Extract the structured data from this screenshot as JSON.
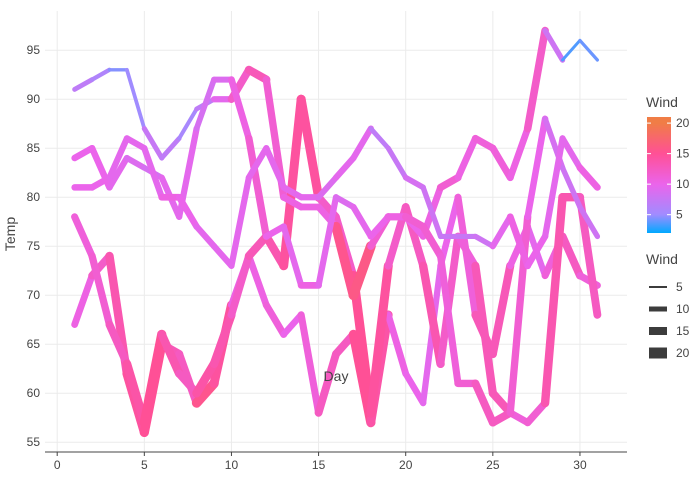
{
  "chart_data": {
    "type": "line",
    "xlabel": "Day",
    "ylabel": "Temp",
    "xlim": [
      -0.7,
      32.7
    ],
    "ylim": [
      54,
      99
    ],
    "x_ticks": [
      0,
      5,
      10,
      15,
      20,
      25,
      30
    ],
    "y_ticks": [
      55,
      60,
      65,
      70,
      75,
      80,
      85,
      90,
      95
    ],
    "grid": true,
    "color_legend": {
      "title": "Wind",
      "min": 2,
      "max": 21,
      "ticks": [
        5,
        10,
        15,
        20
      ]
    },
    "size_legend": {
      "title": "Wind",
      "entries": [
        5,
        10,
        15,
        20
      ]
    },
    "series": [
      {
        "x": [
          1,
          2,
          3,
          4,
          5,
          6,
          7,
          8,
          9,
          10,
          11,
          12,
          13,
          14,
          15,
          16,
          17,
          18,
          19,
          20,
          21,
          22,
          23,
          24,
          25,
          26,
          27,
          28,
          29,
          30,
          31
        ],
        "y": [
          67,
          72,
          74,
          62,
          56,
          65,
          64,
          59,
          61,
          69,
          74,
          69,
          66,
          68,
          58,
          64,
          66,
          57,
          68,
          62,
          59,
          73,
          80,
          68,
          64,
          73,
          77,
          72,
          76,
          72,
          71
        ],
        "wind": [
          11,
          10,
          14,
          13,
          16,
          14,
          12,
          13,
          18,
          11,
          10,
          11,
          11,
          9,
          13,
          12,
          13,
          17,
          11,
          10,
          10,
          9,
          11,
          11,
          15,
          11,
          10,
          9,
          13,
          12,
          10
        ]
      },
      {
        "x": [
          1,
          2,
          3,
          4,
          5,
          6,
          7,
          8,
          9,
          10,
          11,
          12,
          13,
          14,
          15,
          16,
          17,
          18,
          19,
          20,
          21,
          22,
          23,
          24,
          25,
          26,
          27,
          28,
          29,
          30,
          31
        ],
        "y": [
          78,
          74,
          67,
          63,
          57,
          66,
          62,
          60,
          63,
          68,
          74,
          76,
          73,
          90,
          80,
          78,
          72,
          58,
          73,
          79,
          73,
          63,
          76,
          73,
          60,
          58,
          57,
          59,
          80,
          80,
          68
        ],
        "wind": [
          11,
          11,
          12,
          13,
          15,
          15,
          12,
          13,
          15,
          12,
          12,
          14,
          13,
          16,
          13,
          11,
          13,
          17,
          12,
          12,
          13,
          14,
          10,
          12,
          14,
          12,
          10,
          13,
          14,
          13,
          12
        ]
      },
      {
        "x": [
          1,
          2,
          3,
          4,
          5,
          6,
          7,
          8,
          9,
          10,
          11,
          12,
          13,
          14,
          15,
          16,
          17,
          18,
          19,
          20,
          21,
          22,
          23,
          24,
          25,
          26,
          27,
          28,
          29,
          30,
          31
        ],
        "y": [
          91,
          92,
          93,
          93,
          87,
          84,
          86,
          89,
          90,
          90,
          93,
          92,
          80,
          79,
          79,
          77,
          70,
          75,
          78,
          78,
          76,
          81,
          82,
          86,
          85,
          82,
          87,
          97,
          94,
          96,
          94
        ],
        "wind": [
          7,
          7,
          5,
          4,
          6,
          9,
          5,
          6,
          8,
          11,
          13,
          13,
          10,
          11,
          10,
          11,
          20,
          12,
          11,
          11,
          9,
          12,
          11,
          10,
          12,
          10,
          11,
          13,
          3,
          4,
          4
        ]
      },
      {
        "x": [
          1,
          2,
          3,
          4,
          5,
          6,
          7,
          8,
          9,
          10,
          11,
          12,
          13,
          14,
          15,
          16,
          17,
          18,
          19,
          20,
          21,
          22,
          23,
          24,
          25,
          26,
          27,
          28,
          29,
          30,
          31
        ],
        "y": [
          84,
          85,
          81,
          84,
          83,
          82,
          78,
          87,
          92,
          92,
          86,
          76,
          77,
          71,
          71,
          80,
          79,
          76,
          78,
          78,
          77,
          74,
          61,
          61,
          57,
          58,
          78,
          88,
          83,
          79,
          76
        ],
        "wind": [
          9,
          11,
          9,
          10,
          8,
          9,
          10,
          9,
          8,
          10,
          11,
          12,
          8,
          11,
          10,
          9,
          9,
          10,
          10,
          11,
          12,
          11,
          11,
          12,
          13,
          12,
          11,
          9,
          8,
          8,
          8
        ]
      },
      {
        "x": [
          1,
          2,
          3,
          4,
          5,
          6,
          7,
          8,
          9,
          10,
          11,
          12,
          13,
          14,
          15,
          16,
          17,
          18,
          19,
          20,
          21,
          22,
          23,
          24,
          25,
          26,
          27,
          28,
          29,
          30,
          31
        ],
        "y": [
          81,
          81,
          82,
          86,
          85,
          80,
          80,
          77,
          75,
          73,
          82,
          85,
          81,
          80,
          80,
          82,
          84,
          87,
          85,
          82,
          81,
          76,
          76,
          76,
          75,
          78,
          73,
          76,
          86,
          83,
          81
        ],
        "wind": [
          9,
          11,
          9,
          10,
          9,
          10,
          11,
          9,
          10,
          9,
          10,
          9,
          10,
          9,
          10,
          8,
          11,
          8,
          6,
          9,
          8,
          8,
          7,
          8,
          8,
          11,
          10,
          10,
          9,
          10,
          11
        ]
      }
    ]
  }
}
